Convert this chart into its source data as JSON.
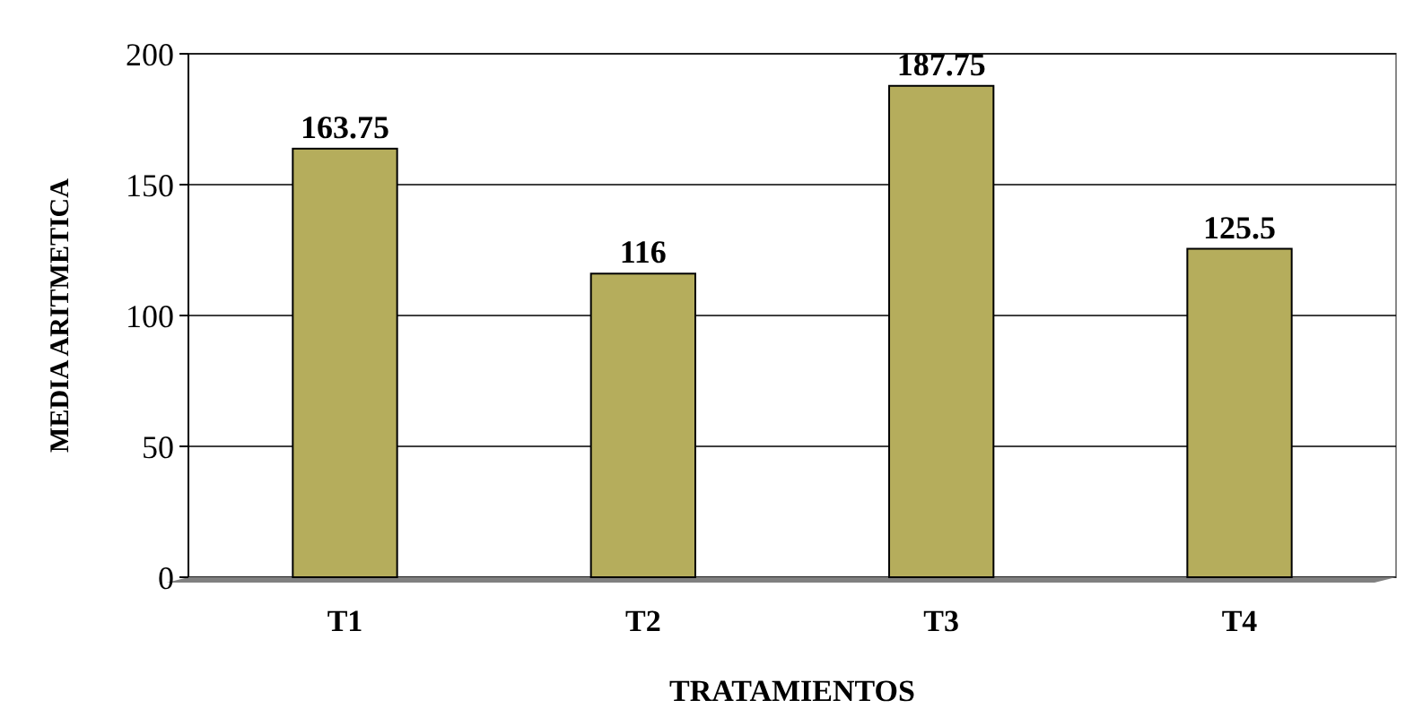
{
  "chart_data": {
    "type": "bar",
    "xlabel": "TRATAMIENTOS",
    "ylabel": "MEDIA ARITMETICA",
    "categories": [
      "T1",
      "T2",
      "T3",
      "T4"
    ],
    "values": [
      163.75,
      116,
      187.75,
      125.5
    ],
    "color": "#b5ad5c",
    "ylim": [
      0,
      200
    ],
    "yticks": [
      0,
      50,
      100,
      150,
      200
    ],
    "grid": "y",
    "data_labels": true
  }
}
